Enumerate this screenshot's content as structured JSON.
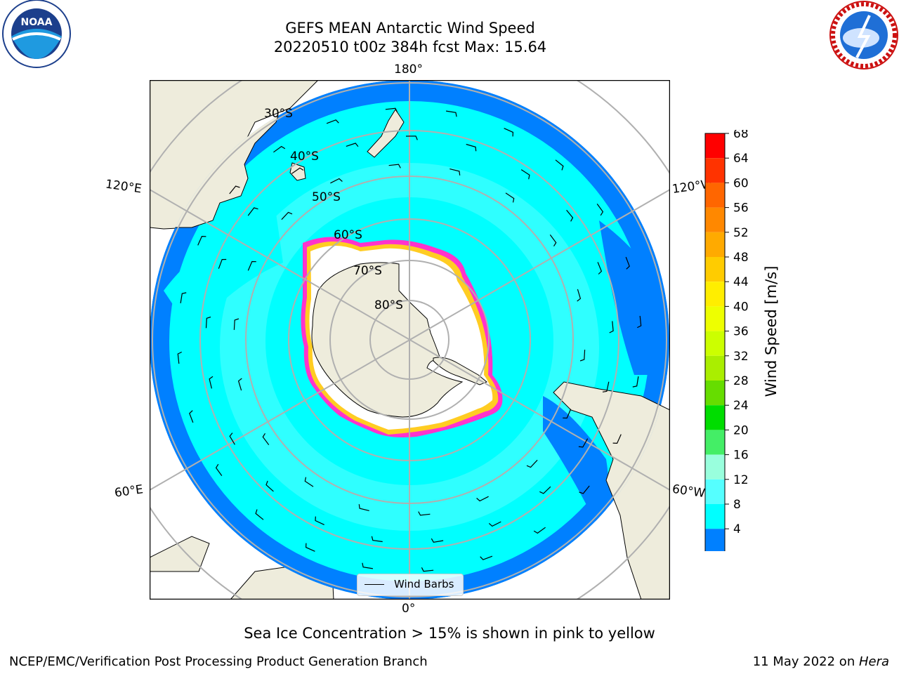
{
  "header": {
    "title_line1": "GEFS MEAN Antarctic Wind Speed",
    "title_line2": "20220510 t00z 384h fcst   Max: 15.64"
  },
  "logos": {
    "left": {
      "name": "noaa-logo",
      "text": "NOAA",
      "ring_text": "NATIONAL OCEANIC AND ATMOSPHERIC ADMINISTRATION · U.S. DEPARTMENT OF COMMERCE"
    },
    "right": {
      "name": "nws-logo",
      "ring_text": "NATIONAL WEATHER SERVICE"
    }
  },
  "map": {
    "projection": "south-polar-stereographic",
    "longitude_labels": {
      "top": "180°",
      "bottom": "0°",
      "left_upper": "120°E",
      "left_lower": "60°E",
      "right_upper": "120°W",
      "right_lower": "60°W"
    },
    "latitude_labels": [
      "30°S",
      "40°S",
      "50°S",
      "60°S",
      "70°S",
      "80°S"
    ],
    "legend": {
      "entry": "Wind Barbs"
    },
    "colors": {
      "land": "#eeecdc",
      "ice": "#ffffff",
      "ocean_low": "#0080ff",
      "ocean_mid": "#00ffff",
      "ocean_high": "#55ffff",
      "sea_ice_edge": "#ff33cc",
      "sea_ice_yellow": "#ffcc22",
      "grid": "#b0b0b0"
    }
  },
  "colorbar": {
    "label": "Wind Speed [m/s]",
    "ticks": [
      "68",
      "64",
      "60",
      "56",
      "52",
      "48",
      "44",
      "40",
      "36",
      "32",
      "28",
      "24",
      "20",
      "16",
      "12",
      "8",
      "4"
    ],
    "colors_top_to_bottom": [
      "#ff0000",
      "#ff3300",
      "#ff6600",
      "#ff8800",
      "#ffaa00",
      "#ffcc00",
      "#ffee00",
      "#eeff00",
      "#ccff00",
      "#aaee00",
      "#66dd00",
      "#00dd00",
      "#44ee66",
      "#99ffdd",
      "#55ffff",
      "#00ffff",
      "#0080ff"
    ],
    "extend_color": "#0000ff"
  },
  "caption": "Sea Ice Concentration > 15% is shown in pink to yellow",
  "footer": {
    "left": "NCEP/EMC/Verification Post Processing Product Generation Branch",
    "right_prefix": "11 May 2022 on ",
    "right_machine": "Hera"
  }
}
